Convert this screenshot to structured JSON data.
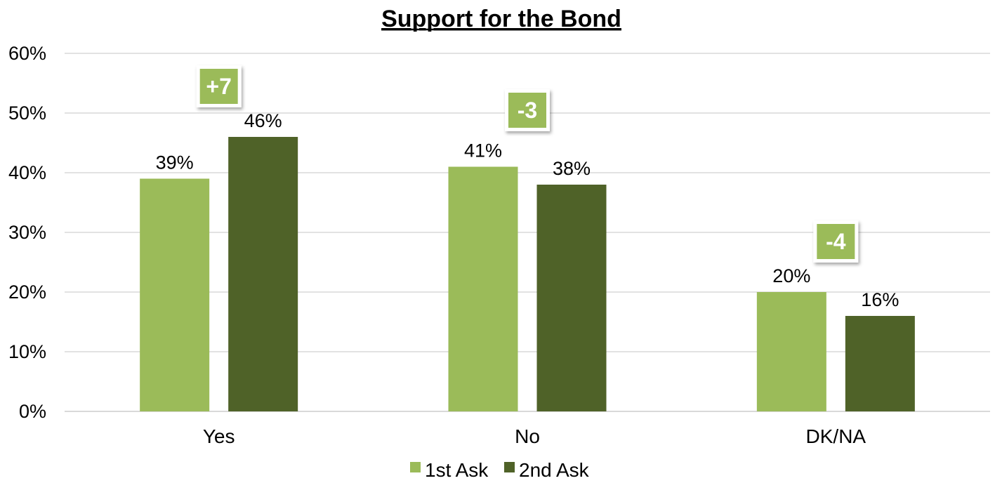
{
  "chart_data": {
    "type": "bar",
    "title": "Support for the Bond",
    "xlabel": "",
    "ylabel": "",
    "categories": [
      "Yes",
      "No",
      "DK/NA"
    ],
    "series": [
      {
        "name": "1st Ask",
        "values": [
          39,
          41,
          20
        ],
        "labels": [
          "39%",
          "41%",
          "20%"
        ],
        "color": "#9bbb59"
      },
      {
        "name": "2nd Ask",
        "values": [
          46,
          38,
          16
        ],
        "labels": [
          "46%",
          "38%",
          "16%"
        ],
        "color": "#4f6228"
      }
    ],
    "ylim": [
      0,
      60
    ],
    "yticks": [
      0,
      10,
      20,
      30,
      40,
      50,
      60
    ],
    "ytick_labels": [
      "0%",
      "10%",
      "20%",
      "30%",
      "40%",
      "50%",
      "60%"
    ],
    "grid": true,
    "legend_position": "bottom-center",
    "annotations": [
      {
        "category": "Yes",
        "text": "+7",
        "level": 58
      },
      {
        "category": "No",
        "text": "-3",
        "level": 54
      },
      {
        "category": "DK/NA",
        "text": "-4",
        "level": 32
      }
    ],
    "annotation_box_color": "#9bbb59"
  }
}
